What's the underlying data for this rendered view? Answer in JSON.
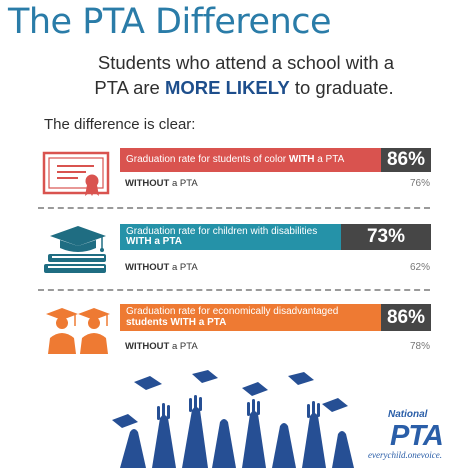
{
  "header": {
    "title": "The PTA Difference",
    "subtitle_line1": "Students who attend a school with a",
    "subtitle_line2_pre": "PTA are ",
    "subtitle_line2_emph": "MORE LIKELY",
    "subtitle_line2_post": " to graduate.",
    "intro": "The difference is clear:"
  },
  "chart_data": {
    "type": "bar",
    "title": "The PTA Difference",
    "categories": [
      "students of color",
      "children with disabilities",
      "economically disadvantaged students"
    ],
    "series": [
      {
        "name": "WITH a PTA",
        "values": [
          86,
          73,
          86
        ]
      },
      {
        "name": "WITHOUT a PTA",
        "values": [
          76,
          62,
          78
        ]
      }
    ],
    "value_unit": "%",
    "ylim": [
      0,
      100
    ],
    "rows": [
      {
        "with_label": "Graduation rate for students of color ",
        "with_label_bold": "WITH",
        "with_label_post": " a PTA",
        "with_label_line2": "",
        "with_value": "86%",
        "without_bold": "WITHOUT",
        "without_post": " a PTA",
        "without_value": "76%",
        "color": "#d9534f"
      },
      {
        "with_label": "Graduation rate for children with disabilities",
        "with_label_bold": "",
        "with_label_post": "",
        "with_label_line2": "WITH a PTA",
        "with_value": "73%",
        "without_bold": "WITHOUT",
        "without_post": " a PTA",
        "without_value": "62%",
        "color": "#2592a8"
      },
      {
        "with_label": "Graduation rate for economically disadvantaged",
        "with_label_bold": "",
        "with_label_post": "",
        "with_label_line2": "students WITH a PTA",
        "with_value": "86%",
        "without_bold": "WITHOUT",
        "without_post": " a PTA",
        "without_value": "78%",
        "color": "#ee7a33"
      }
    ]
  },
  "icons": {
    "row1": "certificate-icon",
    "row2": "books-graduation-cap-icon",
    "row3": "graduates-silhouette-icon",
    "footer": "raised-hands-graduation-caps-icon"
  },
  "logo": {
    "national": "National",
    "pta": "PTA",
    "tagline": "everychild.onevoice."
  },
  "colors": {
    "title": "#2a7ca8",
    "emphasis": "#1d4e8c",
    "value_box": "#464646",
    "icon_red": "#d9534f",
    "icon_teal": "#1f6d82",
    "icon_orange": "#ee7a33",
    "hands": "#264f94"
  }
}
